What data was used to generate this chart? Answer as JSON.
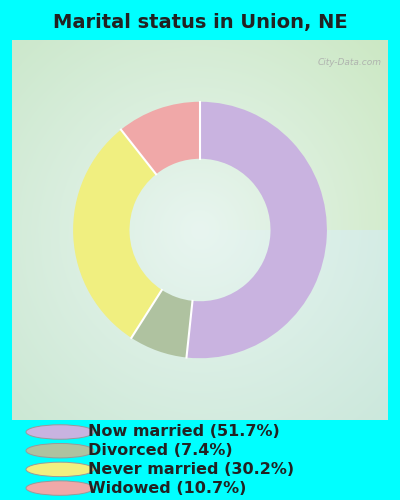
{
  "title": "Marital status in Union, NE",
  "slices": [
    51.7,
    7.4,
    30.2,
    10.7
  ],
  "labels": [
    "Now married (51.7%)",
    "Divorced (7.4%)",
    "Never married (30.2%)",
    "Widowed (10.7%)"
  ],
  "colors": [
    "#c9b3e0",
    "#afc2a0",
    "#f0ef80",
    "#f0a8a8"
  ],
  "outer_bg": "#00ffff",
  "chart_bg_color": "#d8edd8",
  "title_fontsize": 14,
  "legend_fontsize": 11.5,
  "watermark": "City-Data.com",
  "title_color": "#222222",
  "legend_text_color": "#222222"
}
